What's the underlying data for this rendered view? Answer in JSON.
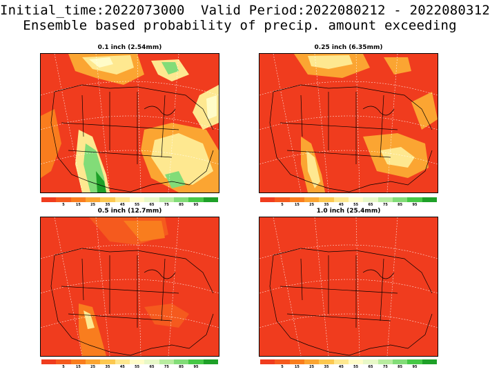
{
  "header": {
    "line1": "Initial_time:2022073000  Valid Period:2022080212 - 2022080312",
    "line2": "Ensemble based probability of precip. amount exceeding"
  },
  "panels": [
    {
      "title": "0.1 inch (2.54mm)",
      "coverage": "mixed-low"
    },
    {
      "title": "0.25 inch (6.35mm)",
      "coverage": "mixed-mid"
    },
    {
      "title": "0.5 inch (12.7mm)",
      "coverage": "mostly-low"
    },
    {
      "title": "1.0 inch (25.4mm)",
      "coverage": "all-low"
    }
  ],
  "colorbar": {
    "colors": [
      "#f03c1e",
      "#f55a1e",
      "#f97d1e",
      "#fba532",
      "#fcc850",
      "#fee890",
      "#fffcc8",
      "#e8f8c8",
      "#b8eca0",
      "#82dc78",
      "#46c846",
      "#1ea028"
    ],
    "labels": [
      "5",
      "15",
      "25",
      "35",
      "45",
      "55",
      "65",
      "75",
      "85",
      "95"
    ]
  },
  "colors": {
    "base": "#f03c1e",
    "low": "#f55a1e",
    "mid": "#fba532",
    "high": "#fee890",
    "top": "#82dc78",
    "max": "#1ea028"
  }
}
